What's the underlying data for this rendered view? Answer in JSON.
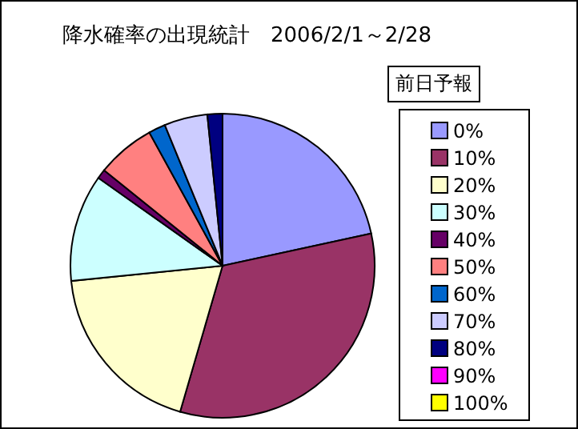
{
  "chart_data": {
    "type": "pie",
    "title": "降水確率の出現統計　2006/2/1～2/28",
    "legend_title": "前日予報",
    "legend": "right",
    "categories": [
      "0%",
      "10%",
      "20%",
      "30%",
      "40%",
      "50%",
      "60%",
      "70%",
      "80%",
      "90%",
      "100%"
    ],
    "values": [
      21.6,
      32.9,
      18.9,
      11.4,
      1.0,
      6.2,
      1.8,
      4.6,
      1.6,
      0,
      0
    ],
    "colors": [
      "#9999ff",
      "#993366",
      "#ffffcc",
      "#ccffff",
      "#660066",
      "#ff8080",
      "#0066cc",
      "#ccccff",
      "#000080",
      "#ff00ff",
      "#ffff00"
    ]
  }
}
